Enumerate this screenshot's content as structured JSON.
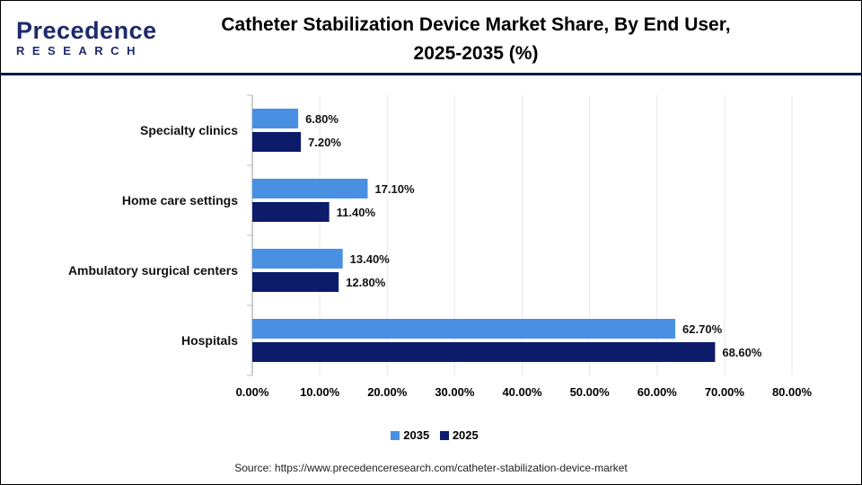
{
  "header": {
    "logo_main": "Precedence",
    "logo_sub": "RESEARCH",
    "title_line1": "Catheter Stabilization Device Market Share, By End User,",
    "title_line2": "2025-2035 (%)"
  },
  "colors": {
    "series_2035": "#4a90e2",
    "series_2025": "#0d1b6b",
    "header_rule": "#0b1a4a"
  },
  "chart_data": {
    "type": "bar",
    "orientation": "horizontal",
    "categories": [
      "Specialty clinics",
      "Home care settings",
      "Ambulatory surgical centers",
      "Hospitals"
    ],
    "series": [
      {
        "name": "2035",
        "values": [
          6.8,
          17.1,
          13.4,
          62.7
        ],
        "labels": [
          "6.80%",
          "17.10%",
          "13.40%",
          "62.70%"
        ]
      },
      {
        "name": "2025",
        "values": [
          7.2,
          11.4,
          12.8,
          68.6
        ],
        "labels": [
          "7.20%",
          "11.40%",
          "12.80%",
          "68.60%"
        ]
      }
    ],
    "xlim": [
      0,
      80
    ],
    "xticks": [
      0,
      10,
      20,
      30,
      40,
      50,
      60,
      70,
      80
    ],
    "xtick_labels": [
      "0.00%",
      "10.00%",
      "20.00%",
      "30.00%",
      "40.00%",
      "50.00%",
      "60.00%",
      "70.00%",
      "80.00%"
    ],
    "grid": "vertical",
    "legend_position": "bottom"
  },
  "source": "Source: https://www.precedenceresearch.com/catheter-stabilization-device-market"
}
